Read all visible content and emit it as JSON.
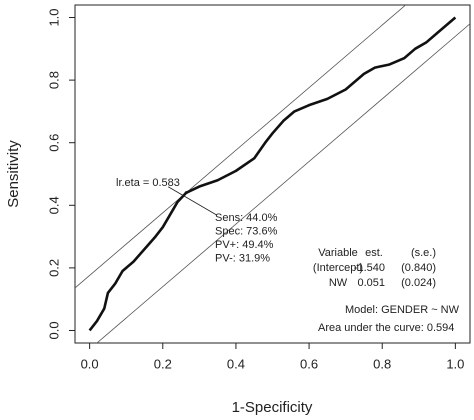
{
  "chart_data": {
    "type": "line",
    "xlabel": "1-Specificity",
    "ylabel": "Sensitivity",
    "xlim": [
      -0.04,
      1.04
    ],
    "ylim": [
      -0.04,
      1.04
    ],
    "xticks": [
      {
        "value": 0,
        "label": "0.0"
      },
      0.2,
      0.4,
      0.6,
      0.8,
      {
        "value": 1,
        "label": "1.0"
      }
    ],
    "yticks": [
      {
        "value": 0,
        "label": "0.0"
      },
      0.2,
      0.4,
      0.6,
      0.8,
      {
        "value": 1,
        "label": "1.0"
      }
    ],
    "series": [
      {
        "color": "#111111",
        "x": [
          0,
          0.02,
          0.04,
          0.05,
          0.07,
          0.09,
          0.12,
          0.15,
          0.18,
          0.2,
          0.22,
          0.24,
          0.264,
          0.3,
          0.35,
          0.4,
          0.45,
          0.48,
          0.5,
          0.53,
          0.56,
          0.6,
          0.65,
          0.7,
          0.75,
          0.78,
          0.82,
          0.86,
          0.89,
          0.92,
          0.95,
          0.97,
          1
        ],
        "y": [
          0,
          0.03,
          0.07,
          0.12,
          0.15,
          0.19,
          0.22,
          0.26,
          0.3,
          0.33,
          0.37,
          0.41,
          0.44,
          0.46,
          0.48,
          0.51,
          0.55,
          0.6,
          0.63,
          0.67,
          0.7,
          0.72,
          0.74,
          0.77,
          0.82,
          0.84,
          0.85,
          0.87,
          0.9,
          0.92,
          0.95,
          0.97,
          1
        ]
      }
    ],
    "reference_lines": [
      {
        "intercept": 0.176
      },
      {
        "intercept": -0.06
      }
    ],
    "cutoff": {
      "x": 0.264,
      "y": 0.44,
      "label": "lr.eta = 0.583"
    },
    "cutoff_stats": [
      "Sens: 44.0%",
      "Spec: 73.6%",
      "PV+: 49.4%",
      "PV-: 31.9%"
    ],
    "table": [
      [
        "Variable",
        "est.",
        "(s.e.)"
      ],
      [
        "(Intercept)",
        "-1.540",
        "(0.840)"
      ],
      [
        "NW",
        "0.051",
        "(0.024)"
      ]
    ],
    "model": "Model: GENDER ~ NW",
    "auc": "Area under the curve: 0.594"
  }
}
